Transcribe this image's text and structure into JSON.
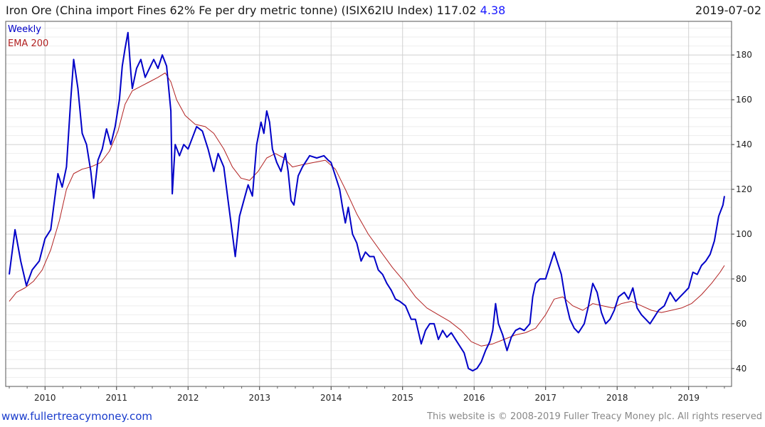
{
  "header": {
    "title": "Iron Ore (China import Fines 62% Fe per dry metric tonne) (ISIX62IU Index)",
    "last_value": "117.02",
    "change": "4.38",
    "date": "2019-07-02"
  },
  "footer": {
    "url": "www.fullertreacymoney.com",
    "copyright": "This website is © 2008-2019 Fuller Treacy Money plc. All rights reserved"
  },
  "colors": {
    "weekly": "#0000c8",
    "ema": "#b22222",
    "grid": "#d0d0d0",
    "minor_grid": "#eeeeee"
  },
  "chart_data": {
    "type": "line",
    "legend": [
      "Weekly",
      "EMA 200"
    ],
    "legend_position": "top-left",
    "x_ticks": [
      "2010",
      "2011",
      "2012",
      "2013",
      "2014",
      "2015",
      "2016",
      "2017",
      "2018",
      "2019"
    ],
    "y_ticks": [
      "40",
      "60",
      "80",
      "100",
      "120",
      "140",
      "160",
      "180"
    ],
    "ylim": [
      32,
      195
    ],
    "xlim": [
      2009.45,
      2019.6
    ],
    "y_axis_position": "right",
    "grid": true,
    "series": [
      {
        "name": "Weekly",
        "points": [
          [
            2009.5,
            82
          ],
          [
            2009.58,
            102
          ],
          [
            2009.66,
            88
          ],
          [
            2009.74,
            77
          ],
          [
            2009.82,
            84
          ],
          [
            2009.92,
            88
          ],
          [
            2010.0,
            98
          ],
          [
            2010.08,
            102
          ],
          [
            2010.12,
            112
          ],
          [
            2010.18,
            127
          ],
          [
            2010.24,
            121
          ],
          [
            2010.3,
            130
          ],
          [
            2010.36,
            160
          ],
          [
            2010.4,
            178
          ],
          [
            2010.46,
            165
          ],
          [
            2010.52,
            145
          ],
          [
            2010.58,
            140
          ],
          [
            2010.64,
            128
          ],
          [
            2010.68,
            116
          ],
          [
            2010.74,
            133
          ],
          [
            2010.8,
            138
          ],
          [
            2010.86,
            147
          ],
          [
            2010.92,
            140
          ],
          [
            2010.98,
            148
          ],
          [
            2011.04,
            160
          ],
          [
            2011.08,
            175
          ],
          [
            2011.12,
            183
          ],
          [
            2011.16,
            190
          ],
          [
            2011.2,
            172
          ],
          [
            2011.22,
            165
          ],
          [
            2011.28,
            174
          ],
          [
            2011.34,
            178
          ],
          [
            2011.4,
            170
          ],
          [
            2011.46,
            174
          ],
          [
            2011.52,
            178
          ],
          [
            2011.58,
            174
          ],
          [
            2011.64,
            180
          ],
          [
            2011.7,
            175
          ],
          [
            2011.76,
            155
          ],
          [
            2011.78,
            118
          ],
          [
            2011.82,
            140
          ],
          [
            2011.88,
            135
          ],
          [
            2011.94,
            140
          ],
          [
            2012.0,
            138
          ],
          [
            2012.06,
            143
          ],
          [
            2012.12,
            148
          ],
          [
            2012.2,
            146
          ],
          [
            2012.28,
            138
          ],
          [
            2012.36,
            128
          ],
          [
            2012.42,
            136
          ],
          [
            2012.5,
            130
          ],
          [
            2012.56,
            115
          ],
          [
            2012.62,
            100
          ],
          [
            2012.66,
            90
          ],
          [
            2012.72,
            108
          ],
          [
            2012.78,
            115
          ],
          [
            2012.84,
            122
          ],
          [
            2012.9,
            117
          ],
          [
            2012.96,
            140
          ],
          [
            2013.02,
            150
          ],
          [
            2013.06,
            145
          ],
          [
            2013.1,
            155
          ],
          [
            2013.14,
            150
          ],
          [
            2013.18,
            138
          ],
          [
            2013.24,
            132
          ],
          [
            2013.3,
            128
          ],
          [
            2013.36,
            136
          ],
          [
            2013.4,
            128
          ],
          [
            2013.44,
            115
          ],
          [
            2013.48,
            113
          ],
          [
            2013.54,
            126
          ],
          [
            2013.6,
            130
          ],
          [
            2013.7,
            135
          ],
          [
            2013.8,
            134
          ],
          [
            2013.9,
            135
          ],
          [
            2013.96,
            133
          ],
          [
            2014.0,
            132
          ],
          [
            2014.06,
            126
          ],
          [
            2014.12,
            120
          ],
          [
            2014.16,
            112
          ],
          [
            2014.2,
            105
          ],
          [
            2014.24,
            112
          ],
          [
            2014.3,
            100
          ],
          [
            2014.36,
            96
          ],
          [
            2014.42,
            88
          ],
          [
            2014.48,
            92
          ],
          [
            2014.54,
            90
          ],
          [
            2014.6,
            90
          ],
          [
            2014.66,
            84
          ],
          [
            2014.72,
            82
          ],
          [
            2014.78,
            78
          ],
          [
            2014.84,
            75
          ],
          [
            2014.9,
            71
          ],
          [
            2014.96,
            70
          ],
          [
            2015.04,
            68
          ],
          [
            2015.12,
            62
          ],
          [
            2015.18,
            62
          ],
          [
            2015.26,
            51
          ],
          [
            2015.32,
            57
          ],
          [
            2015.38,
            60
          ],
          [
            2015.44,
            60
          ],
          [
            2015.5,
            53
          ],
          [
            2015.56,
            57
          ],
          [
            2015.62,
            54
          ],
          [
            2015.68,
            56
          ],
          [
            2015.74,
            53
          ],
          [
            2015.8,
            50
          ],
          [
            2015.86,
            47
          ],
          [
            2015.92,
            40
          ],
          [
            2015.98,
            39
          ],
          [
            2016.04,
            40
          ],
          [
            2016.1,
            43
          ],
          [
            2016.16,
            48
          ],
          [
            2016.22,
            52
          ],
          [
            2016.26,
            57
          ],
          [
            2016.3,
            69
          ],
          [
            2016.34,
            60
          ],
          [
            2016.4,
            55
          ],
          [
            2016.46,
            48
          ],
          [
            2016.52,
            54
          ],
          [
            2016.58,
            57
          ],
          [
            2016.64,
            58
          ],
          [
            2016.7,
            57
          ],
          [
            2016.78,
            60
          ],
          [
            2016.82,
            72
          ],
          [
            2016.86,
            78
          ],
          [
            2016.92,
            80
          ],
          [
            2017.0,
            80
          ],
          [
            2017.06,
            86
          ],
          [
            2017.12,
            92
          ],
          [
            2017.16,
            88
          ],
          [
            2017.22,
            82
          ],
          [
            2017.28,
            70
          ],
          [
            2017.34,
            62
          ],
          [
            2017.4,
            58
          ],
          [
            2017.46,
            56
          ],
          [
            2017.54,
            60
          ],
          [
            2017.6,
            68
          ],
          [
            2017.66,
            78
          ],
          [
            2017.72,
            74
          ],
          [
            2017.78,
            65
          ],
          [
            2017.84,
            60
          ],
          [
            2017.9,
            62
          ],
          [
            2017.96,
            66
          ],
          [
            2018.02,
            72
          ],
          [
            2018.1,
            74
          ],
          [
            2018.16,
            71
          ],
          [
            2018.22,
            76
          ],
          [
            2018.28,
            67
          ],
          [
            2018.34,
            64
          ],
          [
            2018.4,
            62
          ],
          [
            2018.46,
            60
          ],
          [
            2018.52,
            63
          ],
          [
            2018.58,
            66
          ],
          [
            2018.66,
            68
          ],
          [
            2018.74,
            74
          ],
          [
            2018.82,
            70
          ],
          [
            2018.88,
            72
          ],
          [
            2018.94,
            74
          ],
          [
            2019.0,
            76
          ],
          [
            2019.06,
            83
          ],
          [
            2019.12,
            82
          ],
          [
            2019.18,
            86
          ],
          [
            2019.24,
            88
          ],
          [
            2019.3,
            91
          ],
          [
            2019.36,
            97
          ],
          [
            2019.42,
            108
          ],
          [
            2019.48,
            113
          ],
          [
            2019.5,
            117
          ]
        ]
      },
      {
        "name": "EMA 200",
        "points": [
          [
            2009.5,
            70
          ],
          [
            2009.6,
            74
          ],
          [
            2009.72,
            76
          ],
          [
            2009.84,
            79
          ],
          [
            2009.96,
            84
          ],
          [
            2010.08,
            93
          ],
          [
            2010.2,
            106
          ],
          [
            2010.3,
            120
          ],
          [
            2010.4,
            127
          ],
          [
            2010.52,
            129
          ],
          [
            2010.64,
            130
          ],
          [
            2010.78,
            132
          ],
          [
            2010.9,
            137
          ],
          [
            2011.02,
            146
          ],
          [
            2011.12,
            158
          ],
          [
            2011.22,
            164
          ],
          [
            2011.34,
            166
          ],
          [
            2011.46,
            168
          ],
          [
            2011.58,
            170
          ],
          [
            2011.68,
            172
          ],
          [
            2011.76,
            168
          ],
          [
            2011.84,
            160
          ],
          [
            2011.96,
            153
          ],
          [
            2012.1,
            149
          ],
          [
            2012.24,
            148
          ],
          [
            2012.36,
            145
          ],
          [
            2012.5,
            138
          ],
          [
            2012.62,
            130
          ],
          [
            2012.74,
            125
          ],
          [
            2012.86,
            124
          ],
          [
            2012.98,
            128
          ],
          [
            2013.1,
            134
          ],
          [
            2013.22,
            136
          ],
          [
            2013.34,
            134
          ],
          [
            2013.46,
            130
          ],
          [
            2013.6,
            131
          ],
          [
            2013.76,
            132
          ],
          [
            2013.92,
            133
          ],
          [
            2014.06,
            129
          ],
          [
            2014.2,
            120
          ],
          [
            2014.36,
            109
          ],
          [
            2014.52,
            100
          ],
          [
            2014.7,
            92
          ],
          [
            2014.86,
            85
          ],
          [
            2015.02,
            79
          ],
          [
            2015.18,
            72
          ],
          [
            2015.34,
            67
          ],
          [
            2015.5,
            64
          ],
          [
            2015.66,
            61
          ],
          [
            2015.82,
            57
          ],
          [
            2015.96,
            52
          ],
          [
            2016.1,
            50
          ],
          [
            2016.26,
            51
          ],
          [
            2016.42,
            53
          ],
          [
            2016.58,
            55
          ],
          [
            2016.72,
            56
          ],
          [
            2016.86,
            58
          ],
          [
            2017.0,
            64
          ],
          [
            2017.12,
            71
          ],
          [
            2017.24,
            72
          ],
          [
            2017.38,
            68
          ],
          [
            2017.52,
            66
          ],
          [
            2017.66,
            69
          ],
          [
            2017.8,
            68
          ],
          [
            2017.94,
            67
          ],
          [
            2018.06,
            69
          ],
          [
            2018.2,
            70
          ],
          [
            2018.34,
            68
          ],
          [
            2018.48,
            66
          ],
          [
            2018.62,
            65
          ],
          [
            2018.76,
            66
          ],
          [
            2018.9,
            67
          ],
          [
            2019.04,
            69
          ],
          [
            2019.18,
            73
          ],
          [
            2019.32,
            78
          ],
          [
            2019.44,
            83
          ],
          [
            2019.5,
            86
          ]
        ]
      }
    ]
  }
}
